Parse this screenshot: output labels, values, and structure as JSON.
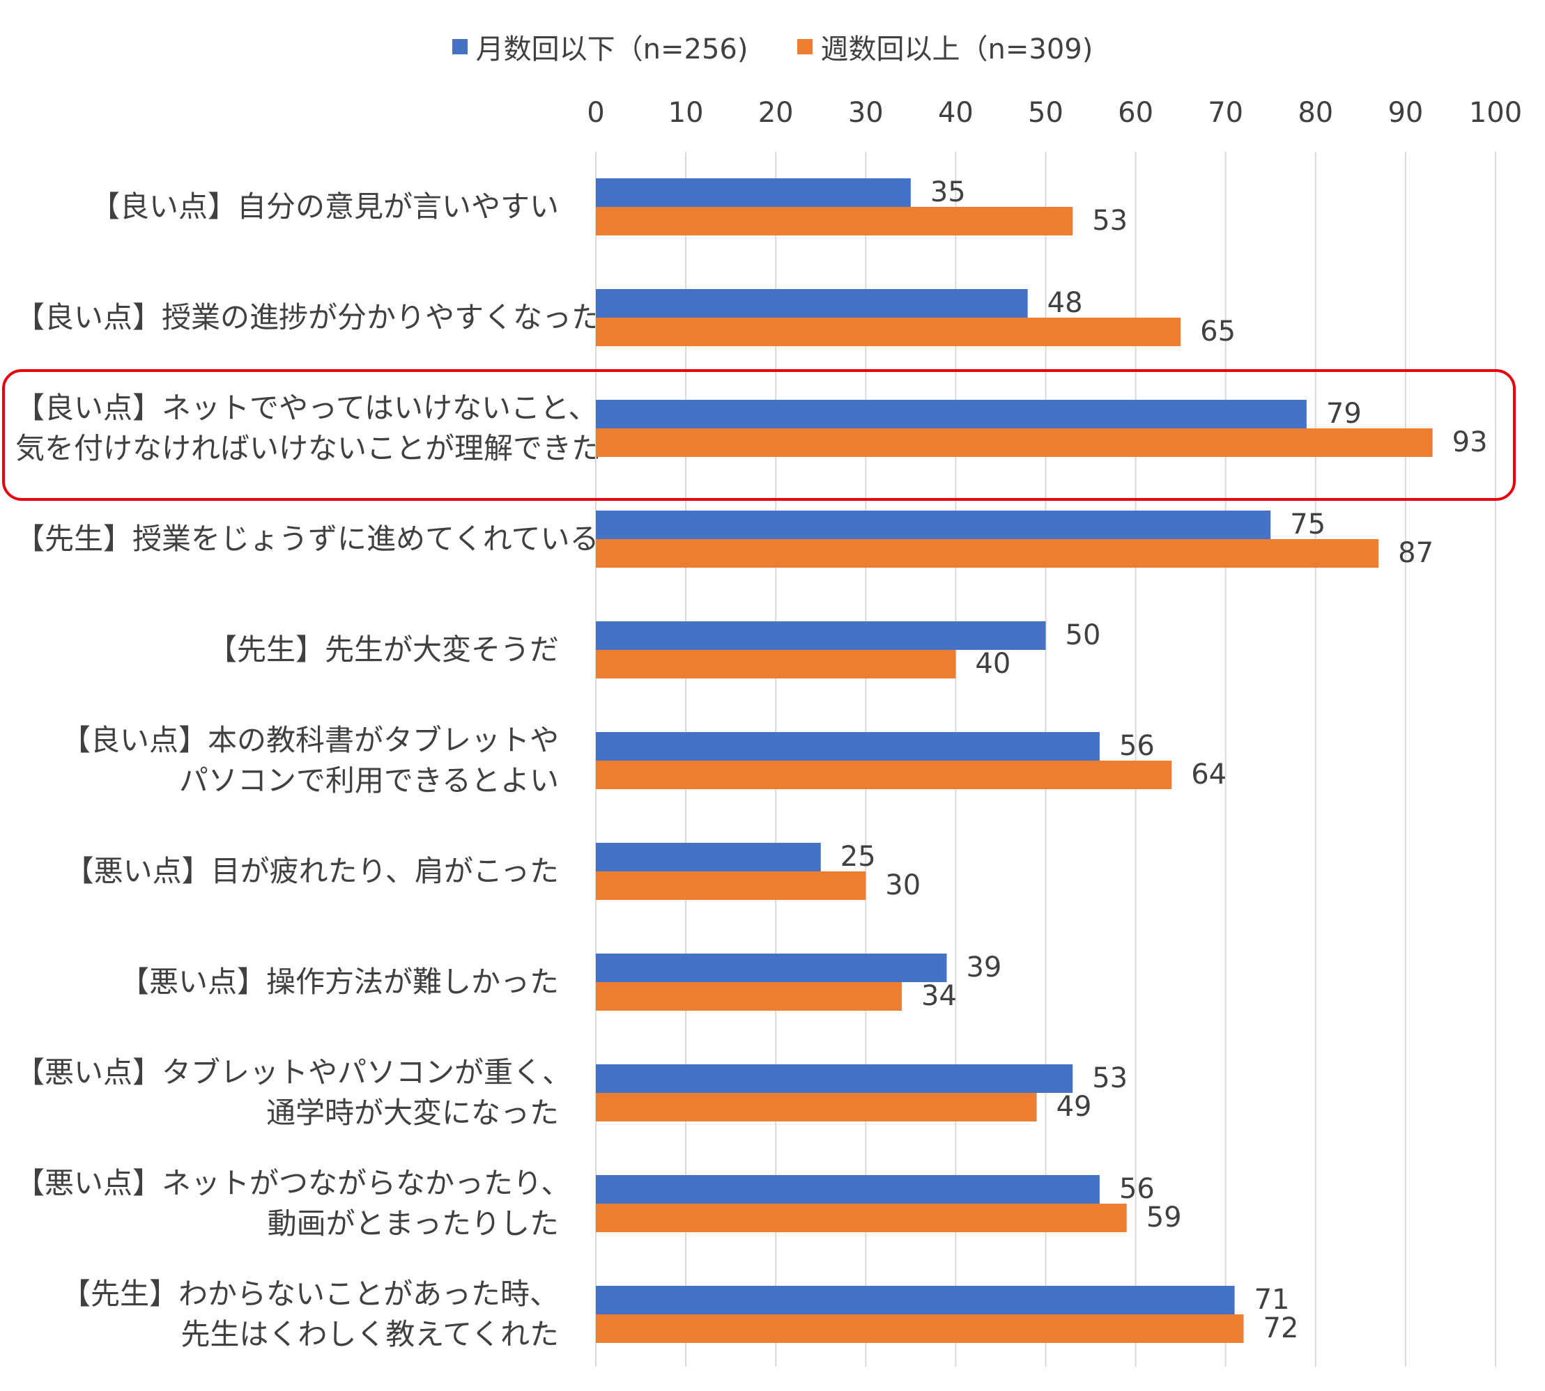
{
  "chart_data": {
    "type": "bar",
    "orientation": "horizontal",
    "title": "",
    "xlabel": "",
    "ylabel": "",
    "xlim": [
      0,
      100
    ],
    "ticks": [
      "0",
      "10",
      "20",
      "30",
      "40",
      "50",
      "60",
      "70",
      "80",
      "90",
      "100"
    ],
    "grid": true,
    "legend_position": "top",
    "categories": [
      "【良い点】自分の意見が言いやすい",
      "【良い点】授業の進捗が分かりやすくなった",
      "【良い点】ネットでやってはいけないこと、\n気を付けなければいけないことが理解できた",
      "【先生】授業をじょうずに進めてくれている",
      "【先生】先生が大変そうだ",
      "【良い点】本の教科書がタブレットや\nパソコンで利用できるとよい",
      "【悪い点】目が疲れたり、肩がこった",
      "【悪い点】操作方法が難しかった",
      "【悪い点】タブレットやパソコンが重く、\n通学時が大変になった",
      "【悪い点】ネットがつながらなかったり、\n動画がとまったりした",
      "【先生】わからないことがあった時、\n先生はくわしく教えてくれた"
    ],
    "series": [
      {
        "name": "月数回以下（n=256)",
        "color": "#4472C4",
        "values": [
          35,
          48,
          79,
          75,
          50,
          56,
          25,
          39,
          53,
          56,
          71
        ]
      },
      {
        "name": "週数回以上（n=309)",
        "color": "#ED7D31",
        "values": [
          53,
          65,
          93,
          87,
          40,
          64,
          30,
          34,
          49,
          59,
          72
        ]
      }
    ],
    "highlight_index": 2,
    "highlight_color": "#E8000B"
  }
}
